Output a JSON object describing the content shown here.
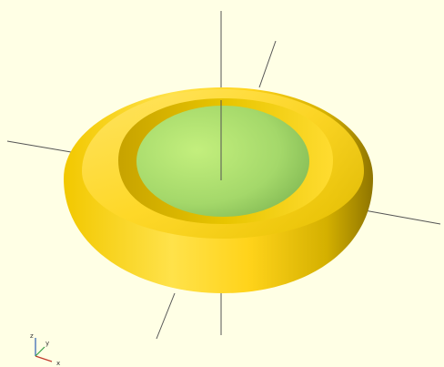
{
  "viewport": {
    "background": "#ffffe5",
    "colors": {
      "body_face": "#ffd700",
      "body_shadow": "#c9a800",
      "inner_face": "#a8dc6a",
      "axis_line": "#555555"
    }
  },
  "axis_indicator": {
    "x_label": "x",
    "y_label": "y",
    "z_label": "z"
  }
}
